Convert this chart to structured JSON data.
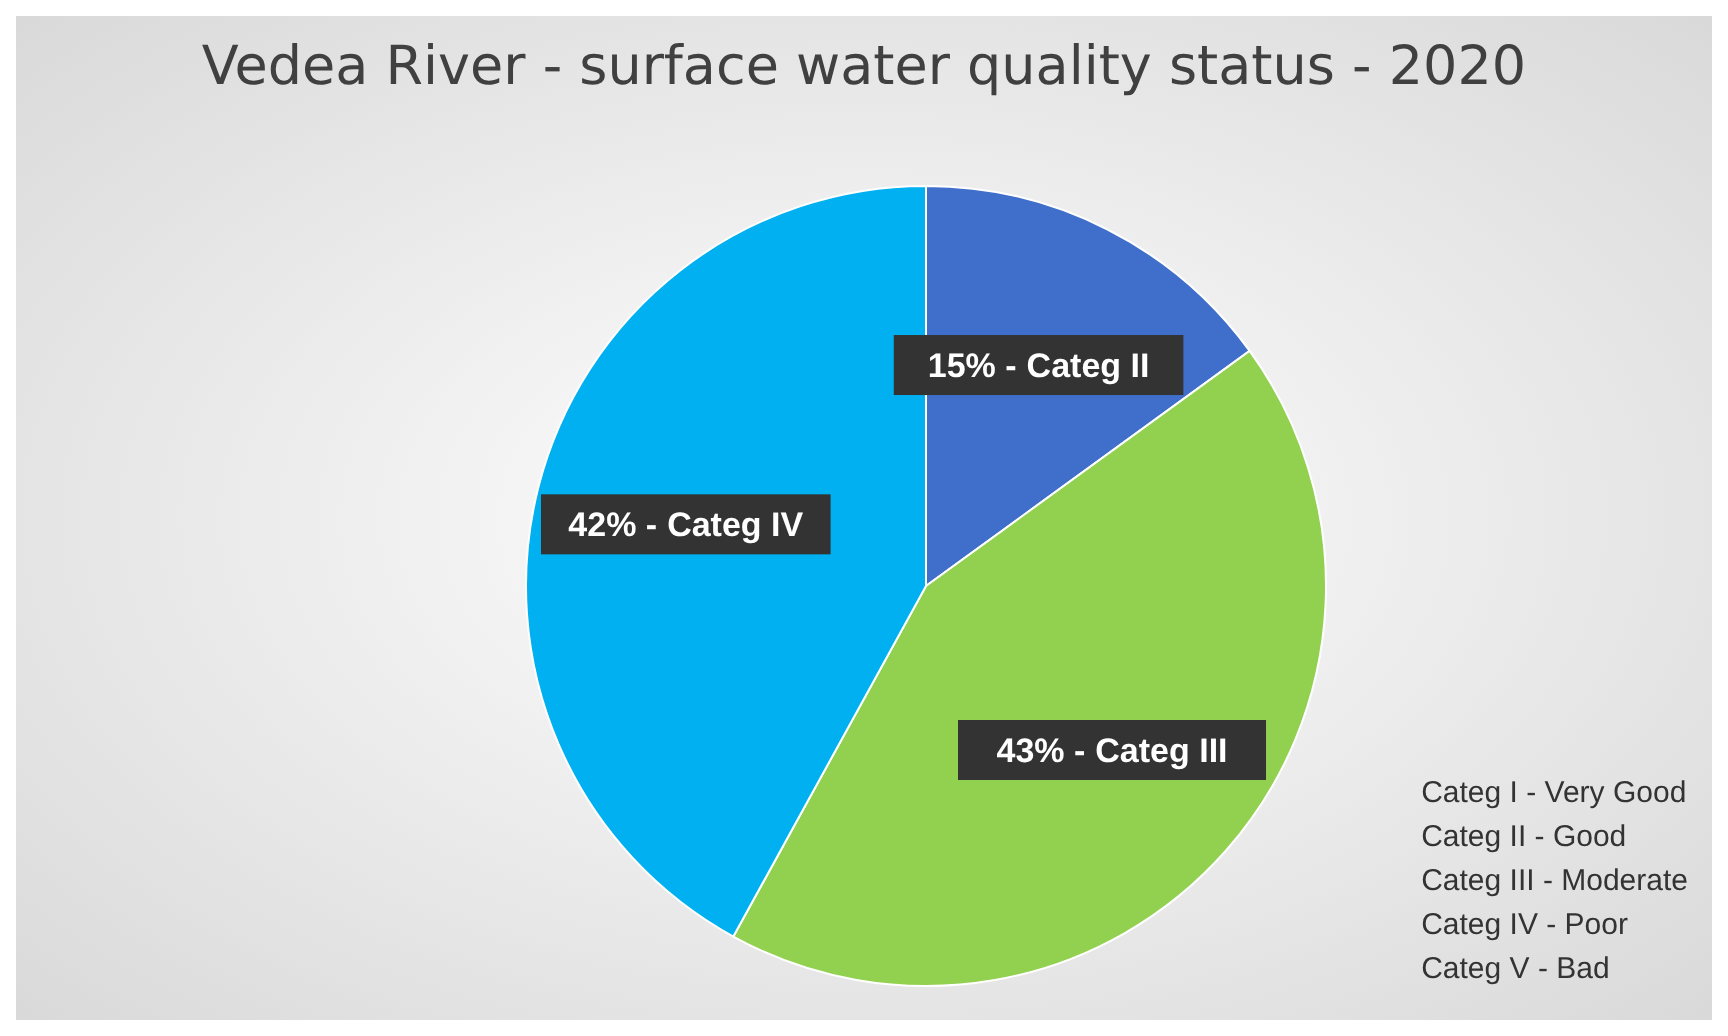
{
  "chart_data": {
    "type": "pie",
    "title": "Vedea River - surface water quality status -  2020",
    "categories": [
      "Categ II",
      "Categ III",
      "Categ IV"
    ],
    "values": [
      15,
      43,
      42
    ],
    "colors": [
      "#3f6fcb",
      "#92d050",
      "#00b0f0"
    ],
    "value_labels": [
      "15% -",
      "43% -",
      "42% -"
    ],
    "legend": false,
    "annotations": [
      "Categ I - Very Good",
      "Categ II - Good",
      "Categ III - Moderate",
      "Categ IV - Poor",
      "Categ V - Bad"
    ]
  }
}
